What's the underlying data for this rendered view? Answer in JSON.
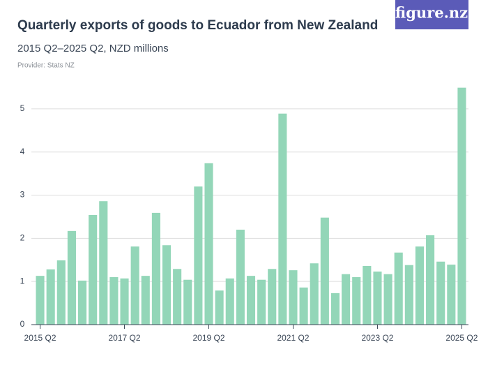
{
  "chart_data": {
    "type": "bar",
    "title": "Quarterly exports of goods to Ecuador from New Zealand",
    "subtitle": "2015 Q2–2025 Q2, NZD millions",
    "provider": "Provider: Stats NZ",
    "logo": "figure.nz",
    "categories": [
      "2015 Q2",
      null,
      null,
      null,
      null,
      null,
      null,
      null,
      "2017 Q2",
      null,
      null,
      null,
      null,
      null,
      null,
      null,
      "2019 Q2",
      null,
      null,
      null,
      null,
      null,
      null,
      null,
      "2021 Q2",
      null,
      null,
      null,
      null,
      null,
      null,
      null,
      "2023 Q2",
      null,
      null,
      null,
      null,
      null,
      null,
      null,
      "2025 Q2"
    ],
    "values": [
      1.13,
      1.28,
      1.49,
      2.17,
      1.02,
      2.54,
      2.86,
      1.1,
      1.07,
      1.81,
      1.13,
      2.59,
      1.84,
      1.29,
      1.04,
      3.2,
      3.74,
      0.79,
      1.07,
      2.2,
      1.13,
      1.04,
      1.29,
      4.89,
      1.26,
      0.86,
      1.42,
      2.48,
      0.73,
      1.17,
      1.1,
      1.36,
      1.23,
      1.17,
      1.67,
      1.38,
      1.81,
      2.07,
      1.46,
      1.39,
      5.49
    ],
    "color": "#93d6b8",
    "ylim": [
      0,
      5.5
    ],
    "yticks": [
      0,
      1,
      2,
      3,
      4,
      5
    ],
    "grid": true
  }
}
